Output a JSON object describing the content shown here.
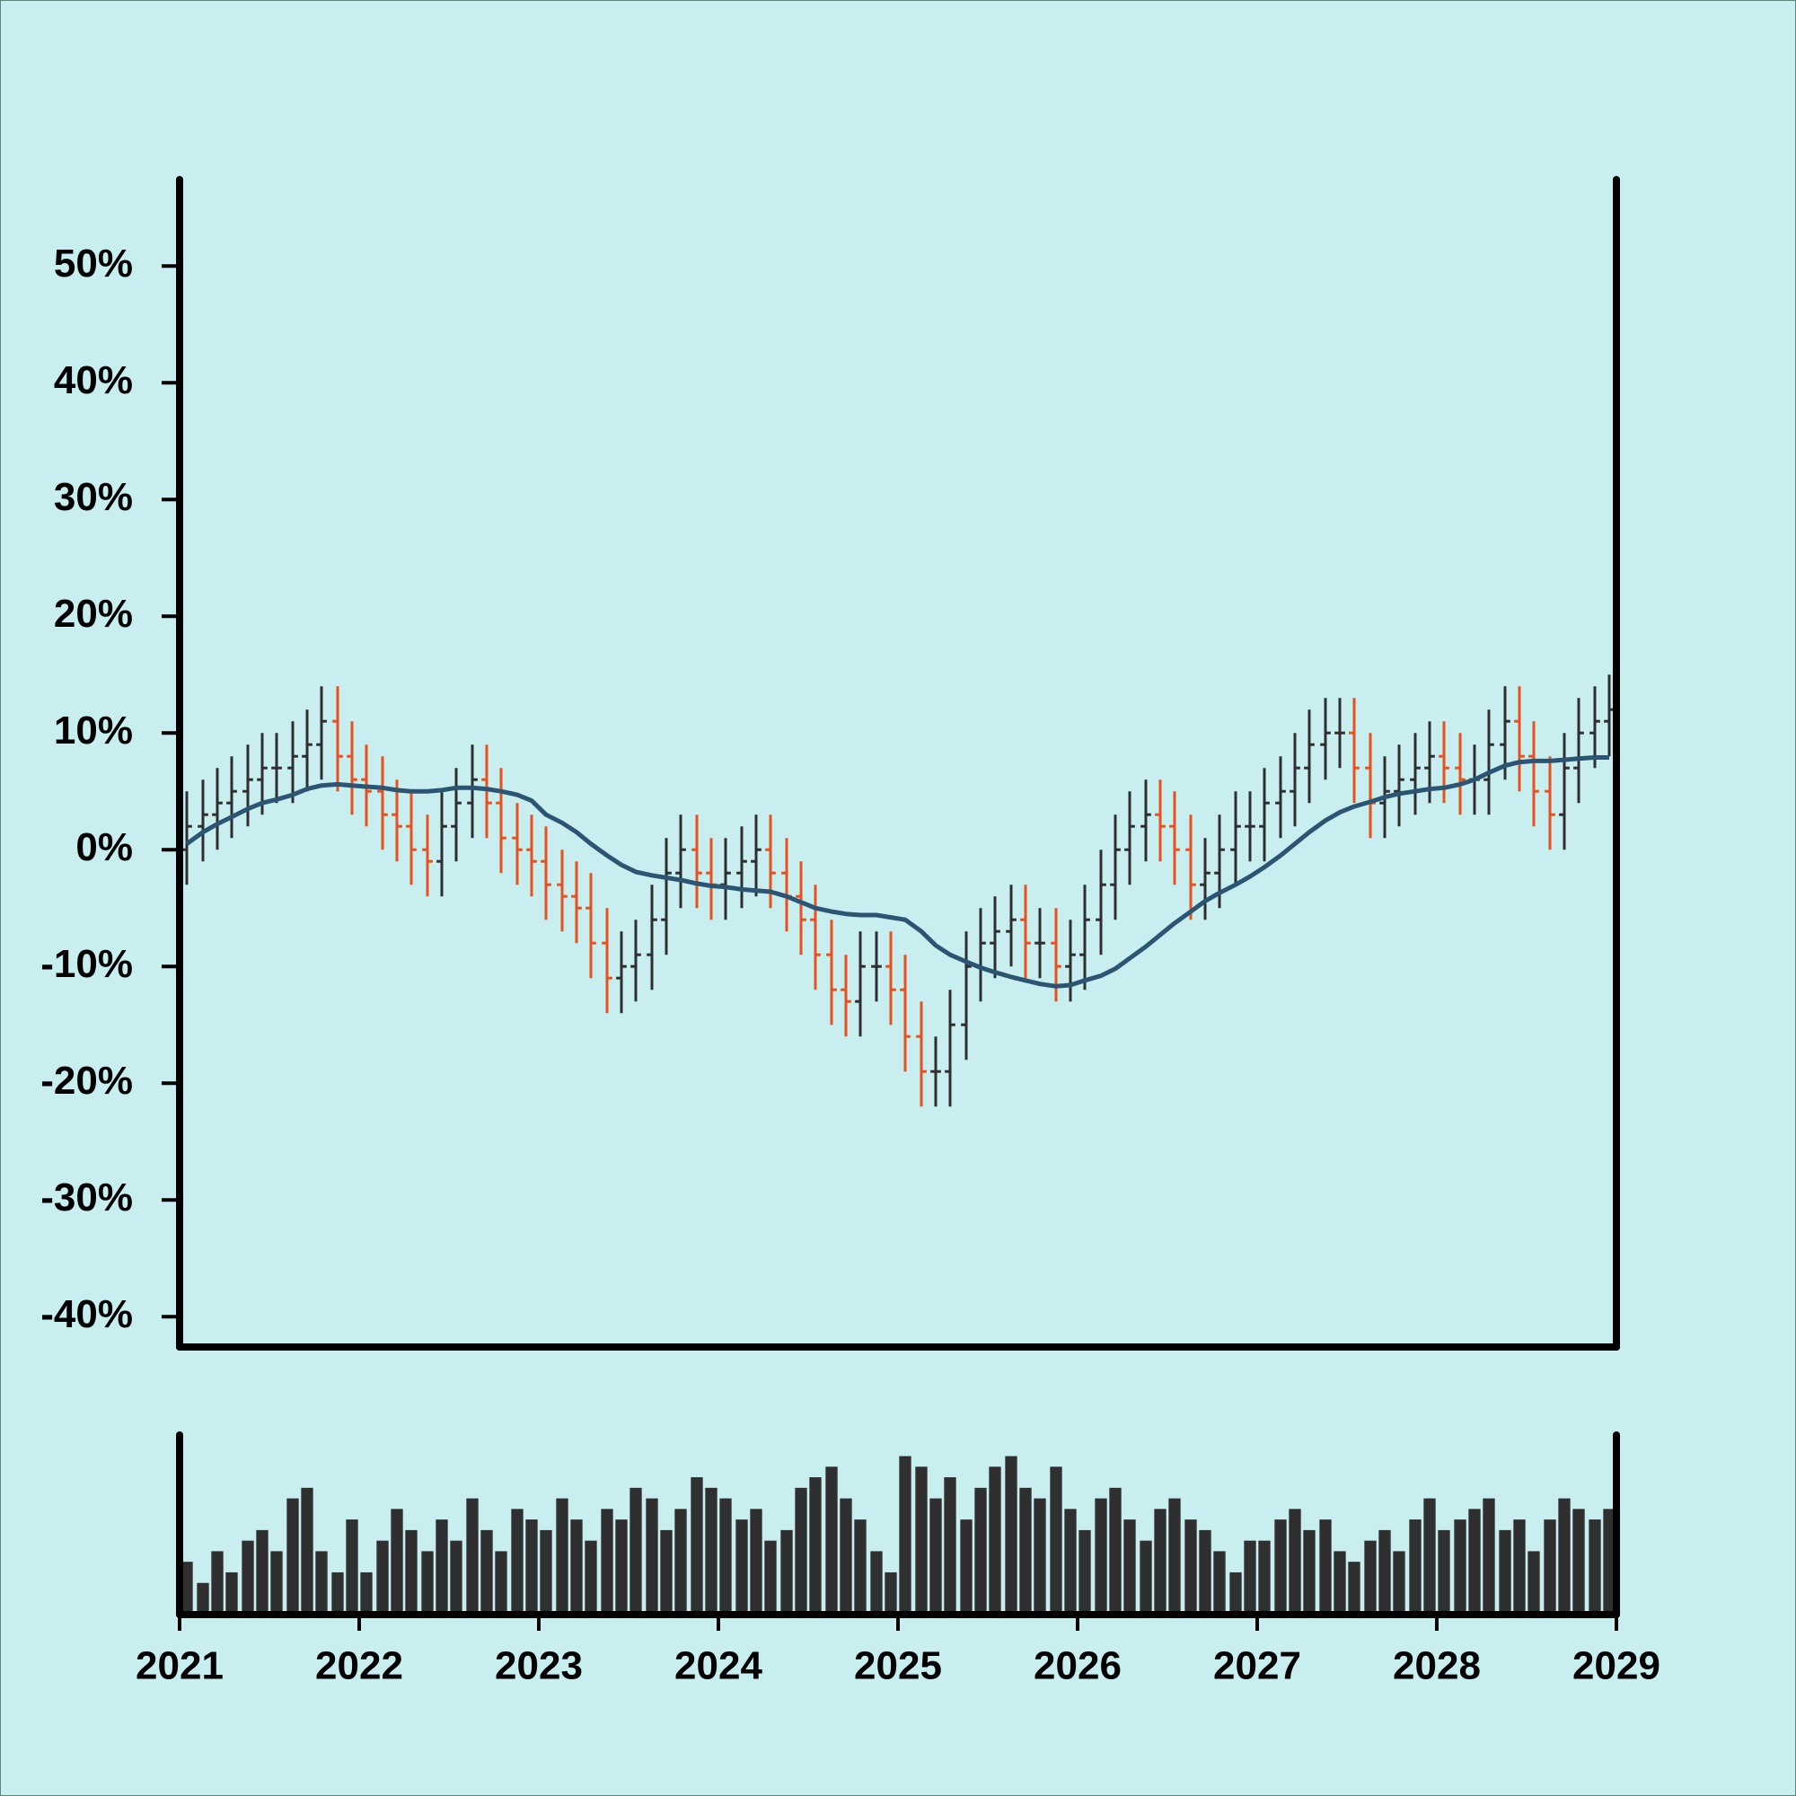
{
  "chart_data": {
    "type": "ohlc",
    "x": [
      2021.04,
      2021.13,
      2021.21,
      2021.29,
      2021.38,
      2021.46,
      2021.54,
      2021.63,
      2021.71,
      2021.79,
      2021.88,
      2021.96,
      2022.04,
      2022.13,
      2022.21,
      2022.29,
      2022.38,
      2022.46,
      2022.54,
      2022.63,
      2022.71,
      2022.79,
      2022.88,
      2022.96,
      2023.04,
      2023.13,
      2023.21,
      2023.29,
      2023.38,
      2023.46,
      2023.54,
      2023.63,
      2023.71,
      2023.79,
      2023.88,
      2023.96,
      2024.04,
      2024.13,
      2024.21,
      2024.29,
      2024.38,
      2024.46,
      2024.54,
      2024.63,
      2024.71,
      2024.79,
      2024.88,
      2024.96,
      2025.04,
      2025.13,
      2025.21,
      2025.29,
      2025.38,
      2025.46,
      2025.54,
      2025.63,
      2025.71,
      2025.79,
      2025.88,
      2025.96,
      2026.04,
      2026.13,
      2026.21,
      2026.29,
      2026.38,
      2026.46,
      2026.54,
      2026.63,
      2026.71,
      2026.79,
      2026.88,
      2026.96,
      2027.04,
      2027.13,
      2027.21,
      2027.29,
      2027.38,
      2027.46,
      2027.54,
      2027.63,
      2027.71,
      2027.79,
      2027.88,
      2027.96,
      2028.04,
      2028.13,
      2028.21,
      2028.29,
      2028.38,
      2028.46,
      2028.54,
      2028.63,
      2028.71,
      2028.79,
      2028.88,
      2028.96
    ],
    "open": [
      0,
      2,
      3,
      4,
      5,
      6,
      7,
      7,
      8,
      9,
      11,
      8,
      6,
      5,
      3,
      2,
      0,
      -1,
      2,
      4,
      6,
      4,
      1,
      0,
      -1,
      -3,
      -4,
      -5,
      -8,
      -11,
      -10,
      -9,
      -6,
      -2,
      0,
      -2,
      -3,
      -2,
      -1,
      0,
      -2,
      -4,
      -6,
      -9,
      -12,
      -13,
      -10,
      -10,
      -12,
      -16,
      -19,
      -19,
      -15,
      -10,
      -8,
      -7,
      -6,
      -8,
      -8,
      -10,
      -9,
      -6,
      -3,
      0,
      2,
      3,
      2,
      0,
      -3,
      -2,
      0,
      2,
      2,
      4,
      5,
      7,
      9,
      10,
      10,
      7,
      4,
      5,
      6,
      7,
      8,
      7,
      6,
      6,
      9,
      11,
      8,
      5,
      3,
      7,
      10,
      11
    ],
    "high": [
      5,
      6,
      7,
      8,
      9,
      10,
      10,
      11,
      12,
      14,
      14,
      11,
      9,
      8,
      6,
      5,
      3,
      5,
      7,
      9,
      9,
      7,
      4,
      3,
      2,
      0,
      -1,
      -2,
      -5,
      -7,
      -6,
      -3,
      1,
      3,
      3,
      1,
      1,
      2,
      3,
      3,
      1,
      -1,
      -3,
      -6,
      -9,
      -7,
      -7,
      -7,
      -9,
      -13,
      -16,
      -12,
      -7,
      -5,
      -4,
      -3,
      -3,
      -5,
      -5,
      -6,
      -3,
      0,
      3,
      5,
      6,
      6,
      5,
      3,
      1,
      3,
      5,
      5,
      7,
      8,
      10,
      12,
      13,
      13,
      13,
      10,
      8,
      9,
      10,
      11,
      11,
      10,
      9,
      12,
      14,
      14,
      11,
      8,
      10,
      13,
      14,
      15
    ],
    "low": [
      -3,
      -1,
      0,
      1,
      2,
      3,
      4,
      4,
      5,
      6,
      5,
      3,
      2,
      0,
      -1,
      -3,
      -4,
      -4,
      -1,
      1,
      1,
      -2,
      -3,
      -4,
      -6,
      -7,
      -8,
      -11,
      -14,
      -14,
      -13,
      -12,
      -9,
      -5,
      -5,
      -6,
      -6,
      -5,
      -4,
      -5,
      -7,
      -9,
      -12,
      -15,
      -16,
      -16,
      -13,
      -15,
      -19,
      -22,
      -22,
      -22,
      -18,
      -13,
      -11,
      -10,
      -11,
      -11,
      -13,
      -13,
      -12,
      -9,
      -6,
      -3,
      -1,
      -1,
      -3,
      -6,
      -6,
      -5,
      -3,
      -1,
      -1,
      1,
      2,
      4,
      6,
      7,
      4,
      1,
      1,
      2,
      3,
      4,
      4,
      3,
      3,
      3,
      6,
      5,
      2,
      0,
      0,
      4,
      7,
      8
    ],
    "close": [
      2,
      3,
      4,
      5,
      6,
      7,
      7,
      8,
      9,
      11,
      8,
      6,
      5,
      3,
      2,
      0,
      -1,
      2,
      4,
      6,
      4,
      1,
      0,
      -1,
      -3,
      -4,
      -5,
      -8,
      -11,
      -10,
      -9,
      -6,
      -2,
      0,
      -2,
      -3,
      -2,
      -1,
      0,
      -2,
      -4,
      -6,
      -9,
      -12,
      -13,
      -10,
      -10,
      -12,
      -16,
      -19,
      -19,
      -15,
      -10,
      -8,
      -7,
      -6,
      -8,
      -8,
      -10,
      -9,
      -6,
      -3,
      0,
      2,
      3,
      2,
      0,
      -3,
      -2,
      0,
      2,
      2,
      4,
      5,
      7,
      9,
      10,
      10,
      7,
      4,
      5,
      6,
      7,
      8,
      7,
      6,
      6,
      9,
      11,
      8,
      5,
      3,
      7,
      10,
      11,
      12
    ],
    "up_color": "#2f2f2f",
    "down_color": "#e8501e",
    "ma": {
      "color": "#2c5573",
      "values": [
        0.5,
        1.5,
        2.2,
        2.8,
        3.5,
        4,
        4.3,
        4.7,
        5.2,
        5.5,
        5.6,
        5.5,
        5.4,
        5.3,
        5.1,
        5,
        5,
        5.1,
        5.3,
        5.3,
        5.2,
        5,
        4.7,
        4.2,
        3,
        2.3,
        1.5,
        0.5,
        -0.5,
        -1.3,
        -1.9,
        -2.2,
        -2.4,
        -2.6,
        -2.9,
        -3.1,
        -3.2,
        -3.4,
        -3.5,
        -3.6,
        -4,
        -4.5,
        -5,
        -5.3,
        -5.5,
        -5.6,
        -5.6,
        -5.8,
        -6,
        -7,
        -8.2,
        -9,
        -9.6,
        -10.1,
        -10.5,
        -10.9,
        -11.2,
        -11.5,
        -11.7,
        -11.6,
        -11.2,
        -10.8,
        -10.2,
        -9.3,
        -8.3,
        -7.3,
        -6.3,
        -5.3,
        -4.4,
        -3.7,
        -3,
        -2.3,
        -1.5,
        -0.5,
        0.5,
        1.5,
        2.5,
        3.2,
        3.7,
        4.1,
        4.5,
        4.8,
        5,
        5.2,
        5.3,
        5.6,
        6,
        6.6,
        7.2,
        7.5,
        7.6,
        7.6,
        7.7,
        7.8,
        7.9,
        7.9
      ]
    },
    "volume": {
      "color": "#2f2f2f",
      "ylim": [
        0,
        85
      ],
      "values": [
        25,
        15,
        30,
        20,
        35,
        40,
        30,
        55,
        60,
        30,
        20,
        45,
        20,
        35,
        50,
        40,
        30,
        45,
        35,
        55,
        40,
        30,
        50,
        45,
        40,
        55,
        45,
        35,
        50,
        45,
        60,
        55,
        40,
        50,
        65,
        60,
        55,
        45,
        50,
        35,
        40,
        60,
        65,
        70,
        55,
        45,
        30,
        20,
        75,
        70,
        55,
        65,
        45,
        60,
        70,
        75,
        60,
        55,
        70,
        50,
        40,
        55,
        60,
        45,
        35,
        50,
        55,
        45,
        40,
        30,
        20,
        35,
        35,
        45,
        50,
        40,
        45,
        30,
        25,
        35,
        40,
        30,
        45,
        55,
        40,
        45,
        50,
        55,
        40,
        45,
        30,
        45,
        55,
        50,
        45,
        50
      ]
    },
    "xlim": [
      2021,
      2029
    ],
    "xticks": [
      2021,
      2022,
      2023,
      2024,
      2025,
      2026,
      2027,
      2028,
      2029
    ],
    "ylim": [
      -42.6,
      57.4
    ],
    "yticks": [
      {
        "value": -40,
        "label": "-40%"
      },
      {
        "value": -30,
        "label": "-30%"
      },
      {
        "value": -20,
        "label": "-20%"
      },
      {
        "value": -10,
        "label": "-10%"
      },
      {
        "value": 0,
        "label": "0%"
      },
      {
        "value": 10,
        "label": "10%"
      },
      {
        "value": 20,
        "label": "20%"
      },
      {
        "value": 30,
        "label": "30%"
      },
      {
        "value": 40,
        "label": "40%"
      },
      {
        "value": 50,
        "label": "50%"
      }
    ]
  }
}
